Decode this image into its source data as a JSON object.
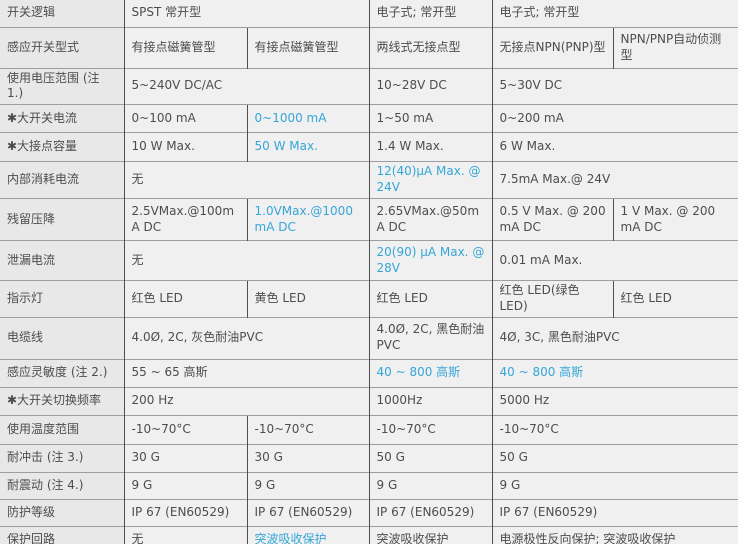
{
  "colors": {
    "accent_blue": "#35a6d9",
    "text": "#4d4d4d",
    "label_background": "#e8e8e8",
    "cell_background": "#f0f0f0",
    "vertical_border": "#4f4f4f",
    "horizontal_border": "#9e9e9e"
  },
  "table": {
    "data_column_count": 5,
    "rows": [
      {
        "label": "开关逻辑",
        "cells": [
          {
            "text": "SPST 常开型",
            "span": 2
          },
          {
            "text": "电子式; 常开型",
            "span": 1
          },
          {
            "text": "电子式; 常开型",
            "span": 2
          }
        ]
      },
      {
        "label": "感应开关型式",
        "cells": [
          {
            "text": "有接点磁簧管型",
            "span": 1
          },
          {
            "text": "有接点磁簧管型",
            "span": 1
          },
          {
            "text": "两线式无接点型",
            "span": 1
          },
          {
            "text": "无接点NPN(PNP)型",
            "span": 1
          },
          {
            "text": "NPN/PNP自动侦测型",
            "span": 1
          }
        ]
      },
      {
        "label": "使用电压范围 (注 1.)",
        "cells": [
          {
            "text": "5~240V DC/AC",
            "span": 2
          },
          {
            "text": "10~28V DC",
            "span": 1
          },
          {
            "text": "5~30V DC",
            "span": 2
          }
        ]
      },
      {
        "label": "✱大开关电流",
        "cells": [
          {
            "text": "0~100 mA",
            "span": 1
          },
          {
            "text": "0~1000 mA",
            "span": 1,
            "highlight": true
          },
          {
            "text": "1~50 mA",
            "span": 1
          },
          {
            "text": "0~200 mA",
            "span": 2
          }
        ]
      },
      {
        "label": "✱大接点容量",
        "cells": [
          {
            "text": "10 W Max.",
            "span": 1
          },
          {
            "text": "50 W Max.",
            "span": 1,
            "highlight": true
          },
          {
            "text": "1.4 W Max.",
            "span": 1
          },
          {
            "text": "6 W Max.",
            "span": 2
          }
        ]
      },
      {
        "label": "内部消耗电流",
        "cells": [
          {
            "text": "无",
            "span": 2
          },
          {
            "text": "12(40)μA Max. @ 24V",
            "span": 1,
            "highlight": true
          },
          {
            "text": "7.5mA Max.@ 24V",
            "span": 2
          }
        ]
      },
      {
        "label": "残留压降",
        "cells": [
          {
            "text": "2.5VMax.@100mA DC",
            "span": 1
          },
          {
            "text": "1.0VMax.@1000mA DC",
            "span": 1,
            "highlight": true
          },
          {
            "text": "2.65VMax.@50mA DC",
            "span": 1
          },
          {
            "text": "0.5 V Max. @ 200 mA DC",
            "span": 1
          },
          {
            "text": "1 V Max. @ 200 mA DC",
            "span": 1
          }
        ]
      },
      {
        "label": "泄漏电流",
        "cells": [
          {
            "text": "无",
            "span": 2
          },
          {
            "text": "20(90) μA Max. @ 28V",
            "span": 1,
            "highlight": true
          },
          {
            "text": "0.01 mA Max.",
            "span": 2
          }
        ]
      },
      {
        "label": "指示灯",
        "cells": [
          {
            "text": "红色 LED",
            "span": 1
          },
          {
            "text": "黄色 LED",
            "span": 1
          },
          {
            "text": "红色 LED",
            "span": 1
          },
          {
            "text": "红色 LED(绿色 LED)",
            "span": 1
          },
          {
            "text": "红色 LED",
            "span": 1
          }
        ]
      },
      {
        "label": "电缆线",
        "cells": [
          {
            "text": "4.0Ø, 2C, 灰色耐油PVC",
            "span": 2
          },
          {
            "text": "4.0Ø, 2C, 黑色耐油PVC",
            "span": 1
          },
          {
            "text": "4Ø, 3C, 黑色耐油PVC",
            "span": 2
          }
        ]
      },
      {
        "label": "感应灵敏度 (注 2.)",
        "cells": [
          {
            "text": "55 ~ 65 高斯",
            "span": 2
          },
          {
            "text": "40 ~ 800 高斯",
            "span": 1,
            "highlight": true
          },
          {
            "text": "40 ~ 800 高斯",
            "span": 2,
            "highlight": true
          }
        ]
      },
      {
        "label": "✱大开关切换频率",
        "cells": [
          {
            "text": "200 Hz",
            "span": 2
          },
          {
            "text": "1000Hz",
            "span": 1
          },
          {
            "text": "5000 Hz",
            "span": 2
          }
        ]
      },
      {
        "label": "使用温度范围",
        "cells": [
          {
            "text": "-10~70°C",
            "span": 1
          },
          {
            "text": "-10~70°C",
            "span": 1
          },
          {
            "text": "-10~70°C",
            "span": 1
          },
          {
            "text": "-10~70°C",
            "span": 2
          }
        ]
      },
      {
        "label": "耐冲击 (注 3.)",
        "cells": [
          {
            "text": "30 G",
            "span": 1
          },
          {
            "text": "30 G",
            "span": 1
          },
          {
            "text": "50 G",
            "span": 1
          },
          {
            "text": "50 G",
            "span": 2
          }
        ]
      },
      {
        "label": "耐震动 (注 4.)",
        "cells": [
          {
            "text": "9 G",
            "span": 1
          },
          {
            "text": "9 G",
            "span": 1
          },
          {
            "text": "9 G",
            "span": 1
          },
          {
            "text": "9 G",
            "span": 2
          }
        ]
      },
      {
        "label": "防护等级",
        "cells": [
          {
            "text": "IP 67 (EN60529)",
            "span": 1
          },
          {
            "text": "IP 67 (EN60529)",
            "span": 1
          },
          {
            "text": "IP 67 (EN60529)",
            "span": 1
          },
          {
            "text": "IP 67 (EN60529)",
            "span": 2
          }
        ]
      },
      {
        "label": "保护回路",
        "cells": [
          {
            "text": "无",
            "span": 1
          },
          {
            "text": "突波吸收保护",
            "span": 1,
            "highlight": true
          },
          {
            "text": "突波吸收保护",
            "span": 1
          },
          {
            "text": "电源极性反向保护; 突波吸收保护",
            "span": 2
          }
        ]
      }
    ]
  }
}
